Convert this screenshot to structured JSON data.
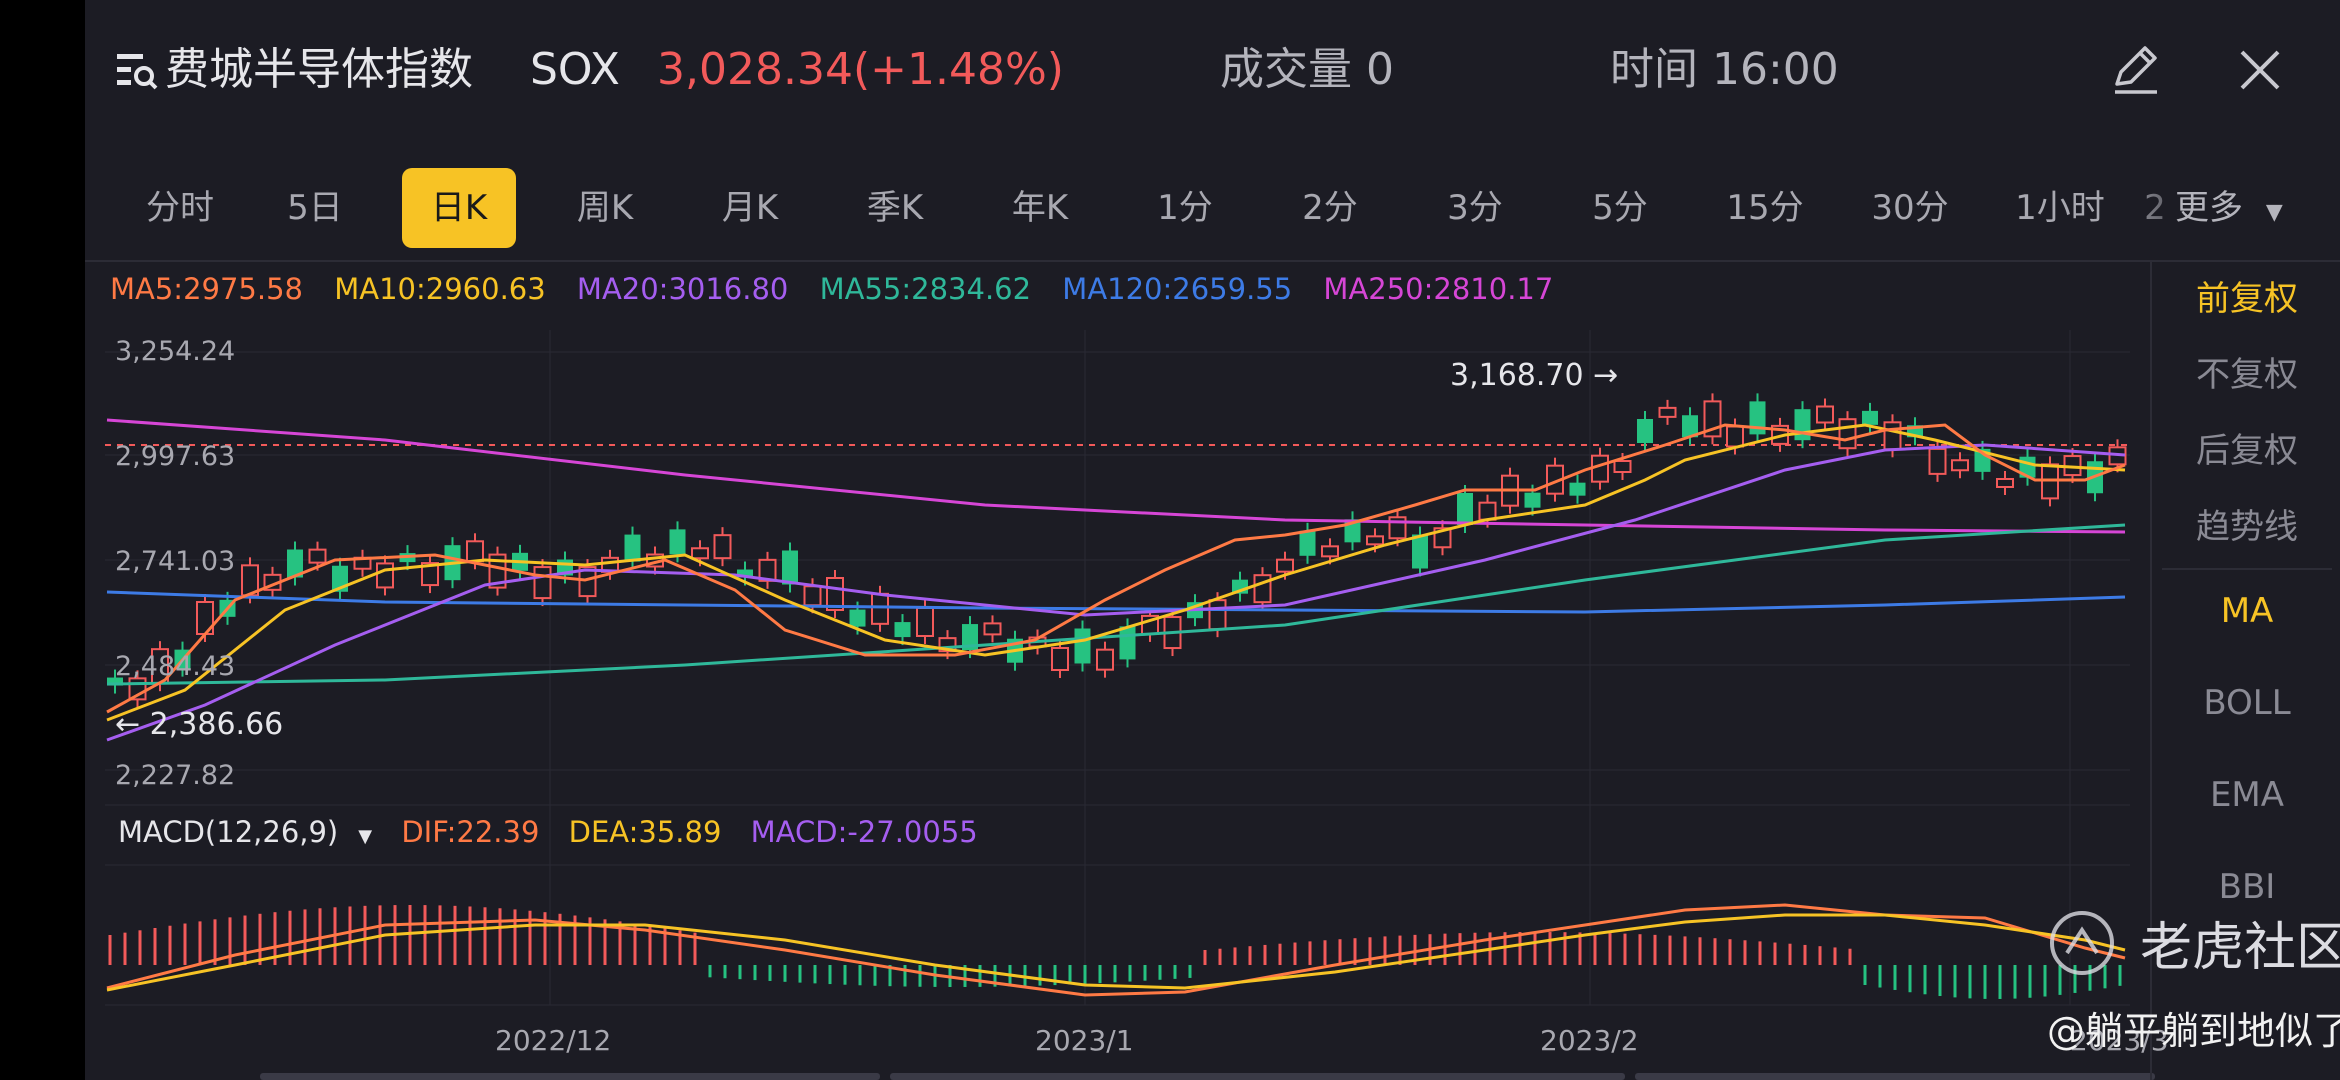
{
  "header": {
    "title": "费城半导体指数",
    "symbol": "SOX",
    "price_change": "3,028.34(+1.48%)",
    "volume": "成交量 0",
    "time": "时间 16:00"
  },
  "tabs": [
    "分时",
    "5日",
    "日K",
    "周K",
    "月K",
    "季K",
    "年K",
    "1分",
    "2分",
    "3分",
    "5分",
    "15分",
    "30分",
    "1小时",
    "2"
  ],
  "active_tab": "日K",
  "more_label": "更多",
  "side_menu": [
    "前复权",
    "不复权",
    "后复权",
    "趋势线",
    "MA",
    "BOLL",
    "EMA",
    "BBI"
  ],
  "ma_legend": {
    "ma5": "MA5:2975.58",
    "ma10": "MA10:2960.63",
    "ma20": "MA20:3016.80",
    "ma55": "MA55:2834.62",
    "ma120": "MA120:2659.55",
    "ma250": "MA250:2810.17"
  },
  "y_axis": [
    "3,254.24",
    "2,997.63",
    "2,741.03",
    "2,484.43",
    "2,227.82"
  ],
  "annotations": {
    "high": "3,168.70 →",
    "low": "← 2,386.66"
  },
  "macd_legend": {
    "title": "MACD(12,26,9)",
    "dif": "DIF:22.39",
    "dea": "DEA:35.89",
    "macd": "MACD:-27.0055"
  },
  "x_axis": [
    "2022/12",
    "2023/1",
    "2023/2",
    "2023/3"
  ],
  "watermark": {
    "brand": "老虎社区",
    "credit": "@躺平躺到地似了"
  },
  "colors": {
    "up": "#f25a5a",
    "down": "#26c281",
    "ma5": "#ff7a45",
    "ma10": "#f7c325",
    "ma20": "#a55ef0",
    "ma55": "#2fb89a",
    "ma120": "#3d7be6",
    "ma250": "#d646d6",
    "accent": "#f7c325"
  },
  "chart_data": {
    "type": "candlestick",
    "y_range": [
      2227.82,
      3254.24
    ],
    "last_price": 3028.34,
    "period_high": 3168.7,
    "period_low": 2386.66
  }
}
